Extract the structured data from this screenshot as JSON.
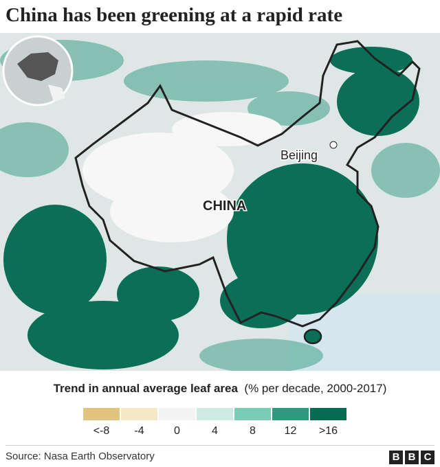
{
  "header": {
    "title": "China has been greening at a rapid rate"
  },
  "map": {
    "labels": [
      "Beijing",
      "CHINA"
    ]
  },
  "legend": {
    "title": "Trend in annual average leaf area",
    "subtitle": "(% per decade, 2000-2017)",
    "items": [
      {
        "label": "<-8",
        "color": "#e2c47e"
      },
      {
        "label": "-4",
        "color": "#f5e8c4"
      },
      {
        "label": "0",
        "color": "#f4f4f4"
      },
      {
        "label": "4",
        "color": "#cdebe2"
      },
      {
        "label": "8",
        "color": "#79cdb6"
      },
      {
        "label": "12",
        "color": "#2e9a80"
      },
      {
        "label": ">16",
        "color": "#076b53"
      }
    ]
  },
  "footer": {
    "source": "Source: Nasa Earth Observatory",
    "logo": [
      "B",
      "B",
      "C"
    ]
  }
}
